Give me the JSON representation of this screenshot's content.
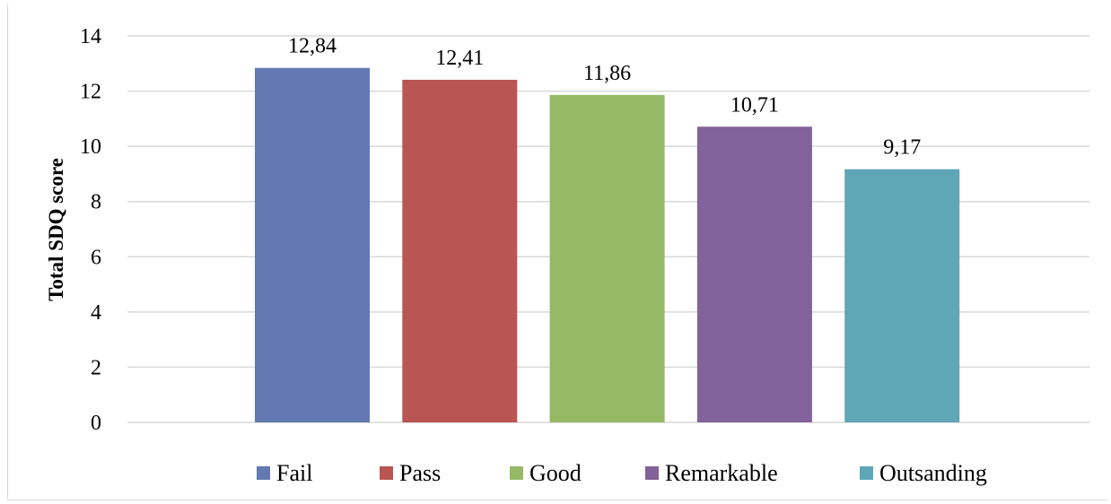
{
  "chart_data": {
    "type": "bar",
    "categories": [
      "Fail",
      "Pass",
      "Good",
      "Remarkable",
      "Outsanding"
    ],
    "values": [
      12.84,
      12.41,
      11.86,
      10.71,
      9.17
    ],
    "data_labels": [
      "12,84",
      "12,41",
      "11,86",
      "10,71",
      "9,17"
    ],
    "colors": [
      "#6479b1",
      "#b95552",
      "#96b966",
      "#82629a",
      "#5fa6b7"
    ],
    "ylabel": "Total SDQ score",
    "ylim": [
      0,
      14
    ],
    "yticks": [
      0,
      2,
      4,
      6,
      8,
      10,
      12,
      14
    ],
    "grid": true,
    "legend": "bottom"
  }
}
